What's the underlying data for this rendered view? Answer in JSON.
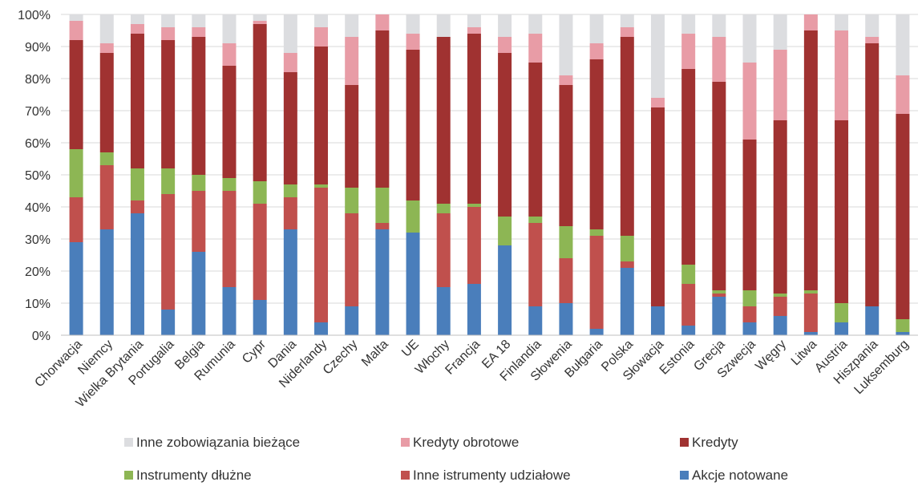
{
  "chart_data": {
    "type": "bar",
    "stacked": true,
    "title": "",
    "xlabel": "",
    "ylabel": "",
    "ylim": [
      0,
      100
    ],
    "y_ticks": [
      "0%",
      "10%",
      "20%",
      "30%",
      "40%",
      "50%",
      "60%",
      "70%",
      "80%",
      "90%",
      "100%"
    ],
    "grid": true,
    "legend_position": "bottom",
    "categories": [
      "Chorwacja",
      "Niemcy",
      "Wielka Brytania",
      "Portugalia",
      "Belgia",
      "Rumunia",
      "Cypr",
      "Dania",
      "Niderlandy",
      "Czechy",
      "Malta",
      "UE",
      "Włochy",
      "Francja",
      "EA 18",
      "Finlandia",
      "Słowenia",
      "Bułgaria",
      "Polska",
      "Słowacja",
      "Estonia",
      "Grecja",
      "Szwecja",
      "Węgry",
      "Litwa",
      "Austria",
      "Hiszpania",
      "Luksemburg"
    ],
    "series": [
      {
        "name": "Akcje notowane",
        "color": "#4a7ebb",
        "values": [
          29,
          33,
          38,
          8,
          26,
          15,
          11,
          33,
          4,
          9,
          33,
          32,
          15,
          16,
          28,
          9,
          10,
          2,
          21,
          9,
          3,
          12,
          4,
          6,
          1,
          4,
          9,
          1
        ]
      },
      {
        "name": "Inne istrumenty udziałowe",
        "color": "#c0504d",
        "values": [
          14,
          20,
          4,
          36,
          19,
          30,
          30,
          10,
          42,
          29,
          2,
          0,
          23,
          24,
          0,
          26,
          14,
          29,
          2,
          0,
          13,
          1,
          5,
          6,
          12,
          0,
          0,
          0
        ]
      },
      {
        "name": "Instrumenty dłużne",
        "color": "#8db654",
        "values": [
          15,
          4,
          10,
          8,
          5,
          4,
          7,
          4,
          1,
          8,
          11,
          10,
          3,
          1,
          9,
          2,
          10,
          2,
          8,
          0,
          6,
          1,
          5,
          1,
          1,
          6,
          0,
          4
        ]
      },
      {
        "name": "Kredyty",
        "color": "#a03231",
        "values": [
          34,
          31,
          42,
          40,
          43,
          35,
          49,
          35,
          43,
          32,
          49,
          47,
          52,
          53,
          51,
          48,
          44,
          53,
          62,
          62,
          61,
          65,
          47,
          54,
          81,
          57,
          82,
          64
        ]
      },
      {
        "name": "Kredyty obrotowe",
        "color": "#e89ca6",
        "values": [
          6,
          3,
          3,
          4,
          3,
          7,
          1,
          6,
          6,
          15,
          5,
          5,
          0,
          2,
          5,
          9,
          3,
          5,
          3,
          3,
          11,
          14,
          24,
          22,
          5,
          28,
          2,
          12
        ]
      },
      {
        "name": "Inne zobowiązania bieżące",
        "color": "#dcdde0",
        "values": [
          2,
          9,
          3,
          4,
          4,
          9,
          2,
          12,
          4,
          7,
          0,
          6,
          7,
          4,
          7,
          6,
          19,
          9,
          4,
          26,
          6,
          7,
          15,
          11,
          0,
          5,
          7,
          19
        ]
      }
    ],
    "legend_order": [
      5,
      4,
      3,
      2,
      1,
      0
    ]
  }
}
